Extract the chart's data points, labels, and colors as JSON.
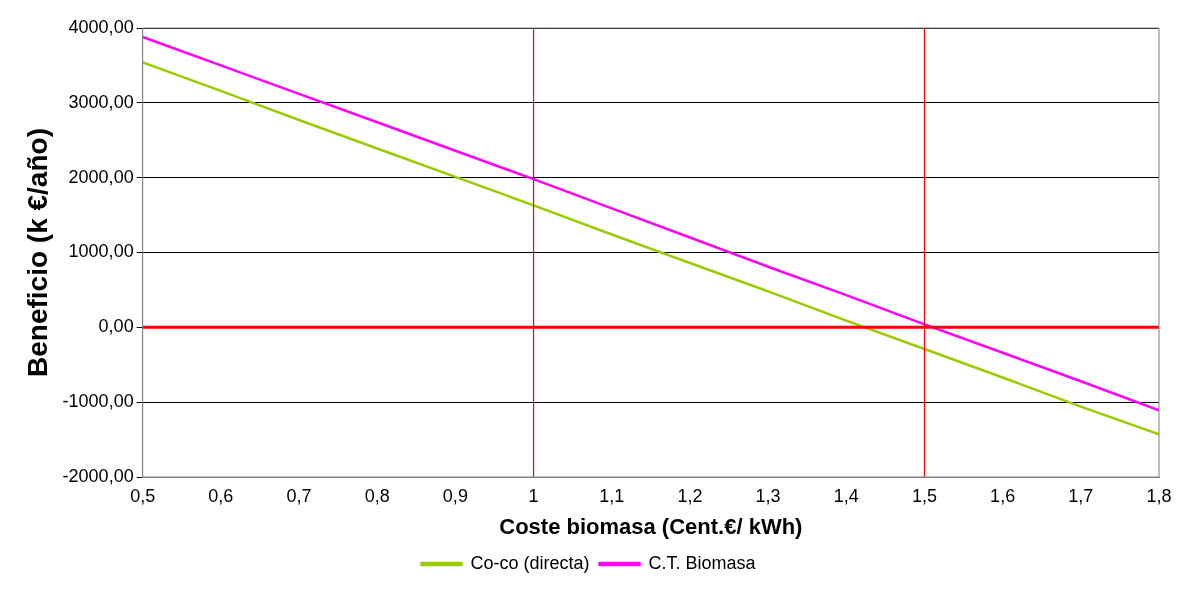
{
  "chart_data": {
    "type": "line",
    "xlabel": "Coste biomasa (Cent.€/ kWh)",
    "ylabel": "Beneficio (k €/año)",
    "x": [
      0.5,
      0.6,
      0.7,
      0.8,
      0.9,
      1.0,
      1.1,
      1.2,
      1.3,
      1.4,
      1.5,
      1.6,
      1.7,
      1.8
    ],
    "series": [
      {
        "name": "Co-co (directa)",
        "color": "#99cc00",
        "values": [
          3540,
          3160,
          2770,
          2390,
          2010,
          1630,
          1240,
          860,
          480,
          90,
          -290,
          -670,
          -1060,
          -1430
        ]
      },
      {
        "name": "C.T. Biomasa",
        "color": "#ff00ff",
        "values": [
          3880,
          3500,
          3120,
          2740,
          2360,
          1980,
          1590,
          1200,
          810,
          430,
          40,
          -340,
          -720,
          -1110
        ]
      }
    ],
    "xlim": [
      0.5,
      1.8
    ],
    "xticks": [
      {
        "value": 0.5,
        "label": "0,5"
      },
      {
        "value": 0.6,
        "label": "0,6"
      },
      {
        "value": 0.7,
        "label": "0,7"
      },
      {
        "value": 0.8,
        "label": "0,8"
      },
      {
        "value": 0.9,
        "label": "0,9"
      },
      {
        "value": 1,
        "label": "1"
      },
      {
        "value": 1.1,
        "label": "1,1"
      },
      {
        "value": 1.2,
        "label": "1,2"
      },
      {
        "value": 1.3,
        "label": "1,3"
      },
      {
        "value": 1.4,
        "label": "1,4"
      },
      {
        "value": 1.5,
        "label": "1,5"
      },
      {
        "value": 1.6,
        "label": "1,6"
      },
      {
        "value": 1.7,
        "label": "1,7"
      },
      {
        "value": 1.8,
        "label": "1,8"
      }
    ],
    "ylim": [
      -2000,
      4000
    ],
    "yticks": [
      {
        "value": -2000,
        "label": "-2000,00"
      },
      {
        "value": -1000,
        "label": "-1000,00"
      },
      {
        "value": 0,
        "label": "0,00"
      },
      {
        "value": 1000,
        "label": "1000,00"
      },
      {
        "value": 2000,
        "label": "2000,00"
      },
      {
        "value": 3000,
        "label": "3000,00"
      },
      {
        "value": 4000,
        "label": "4000,00"
      }
    ],
    "ref_lines": [
      {
        "axis": "y",
        "value": 0,
        "color": "#ff0000"
      },
      {
        "axis": "x",
        "value": 1,
        "color": "#ff0000"
      },
      {
        "axis": "x",
        "value": 1.5,
        "color": "#ff0000"
      }
    ],
    "grid": "y",
    "legend": "bottom",
    "marker": "none",
    "line_style": "solid"
  }
}
